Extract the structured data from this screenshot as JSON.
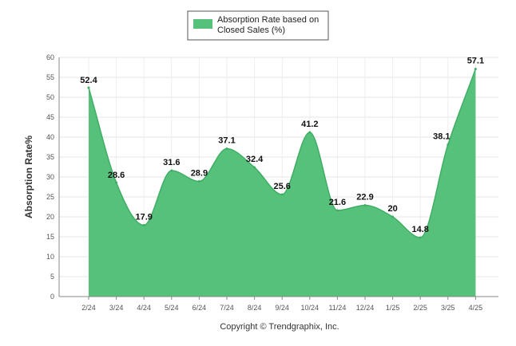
{
  "chart_data": {
    "type": "area",
    "categories": [
      "2/24",
      "3/24",
      "4/24",
      "5/24",
      "6/24",
      "7/24",
      "8/24",
      "9/24",
      "10/24",
      "11/24",
      "12/24",
      "1/25",
      "2/25",
      "3/25",
      "4/25"
    ],
    "series": [
      {
        "name": "Absorption Rate based on Closed Sales (%)",
        "values": [
          52.4,
          28.6,
          17.9,
          31.6,
          28.9,
          37.1,
          32.4,
          25.6,
          41.2,
          21.6,
          22.9,
          20,
          14.8,
          38.1,
          57.1
        ]
      }
    ],
    "data_labels": [
      "52.4",
      "28.6",
      "17.9",
      "31.6",
      "28.9",
      "37.1",
      "32.4",
      "25.6",
      "41.2",
      "21.6",
      "22.9",
      "20",
      "14.8",
      "38.1",
      "57.1"
    ],
    "legend": {
      "line1": "Absorption Rate based on",
      "line2": "Closed Sales (%)",
      "position": "top-center"
    },
    "ylabel": "Absorption Rate%",
    "xlabel": "",
    "ylim": [
      0,
      60
    ],
    "yticks": [
      "0",
      "5",
      "10",
      "15",
      "20",
      "25",
      "30",
      "35",
      "40",
      "45",
      "50",
      "55",
      "60"
    ],
    "grid": true,
    "fill_color": "#56c17b"
  },
  "footer": {
    "copyright": "Copyright © Trendgraphix, Inc."
  }
}
